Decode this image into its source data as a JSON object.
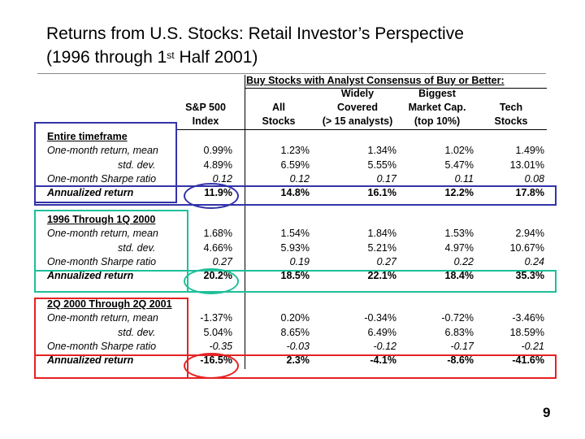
{
  "slide": {
    "title_line1": "Returns from U.S. Stocks: Retail Investor’s Perspective",
    "title_line2_pre": "(1996 through 1",
    "title_line2_sup": "st",
    "title_line2_post": " Half 2001)",
    "page_number": "9"
  },
  "table": {
    "group_header": "Buy Stocks with Analyst Consensus of Buy or Better:",
    "columns": [
      {
        "lines": [
          "S&P 500",
          "Index"
        ]
      },
      {
        "lines": [
          "All",
          "Stocks"
        ]
      },
      {
        "lines": [
          "Widely",
          "Covered",
          "(> 15 analysts)"
        ]
      },
      {
        "lines": [
          "Biggest",
          "Market Cap.",
          "(top 10%)"
        ]
      },
      {
        "lines": [
          "Tech",
          "Stocks"
        ]
      }
    ],
    "sections": [
      {
        "title": "Entire timeframe",
        "box_color": "#3333aa",
        "rows": [
          {
            "label": "One-month return, mean",
            "values": [
              "0.99%",
              "1.23%",
              "1.34%",
              "1.02%",
              "1.49%"
            ]
          },
          {
            "label": "std. dev.",
            "values": [
              "4.89%",
              "6.59%",
              "5.55%",
              "5.47%",
              "13.01%"
            ]
          },
          {
            "label": "One-month Sharpe ratio",
            "values": [
              "0.12",
              "0.12",
              "0.17",
              "0.11",
              "0.08"
            ]
          },
          {
            "label": "Annualized return",
            "values": [
              "11.9%",
              "14.8%",
              "16.1%",
              "12.2%",
              "17.8%"
            ]
          }
        ]
      },
      {
        "title": "1996 Through 1Q 2000",
        "box_color": "#1fbf99",
        "rows": [
          {
            "label": "One-month return, mean",
            "values": [
              "1.68%",
              "1.54%",
              "1.84%",
              "1.53%",
              "2.94%"
            ]
          },
          {
            "label": "std. dev.",
            "values": [
              "4.66%",
              "5.93%",
              "5.21%",
              "4.97%",
              "10.67%"
            ]
          },
          {
            "label": "One-month Sharpe ratio",
            "values": [
              "0.27",
              "0.19",
              "0.27",
              "0.22",
              "0.24"
            ]
          },
          {
            "label": "Annualized return",
            "values": [
              "20.2%",
              "18.5%",
              "22.1%",
              "18.4%",
              "35.3%"
            ]
          }
        ]
      },
      {
        "title": "2Q 2000 Through 2Q 2001",
        "box_color": "#e52222",
        "rows": [
          {
            "label": "One-month return, mean",
            "values": [
              "-1.37%",
              "0.20%",
              "-0.34%",
              "-0.72%",
              "-3.46%"
            ]
          },
          {
            "label": "std. dev.",
            "values": [
              "5.04%",
              "8.65%",
              "6.49%",
              "6.83%",
              "18.59%"
            ]
          },
          {
            "label": "One-month Sharpe ratio",
            "values": [
              "-0.35",
              "-0.03",
              "-0.12",
              "-0.17",
              "-0.21"
            ]
          },
          {
            "label": "Annualized return",
            "values": [
              "-16.5%",
              "2.3%",
              "-4.1%",
              "-8.6%",
              "-41.6%"
            ]
          }
        ]
      }
    ]
  }
}
